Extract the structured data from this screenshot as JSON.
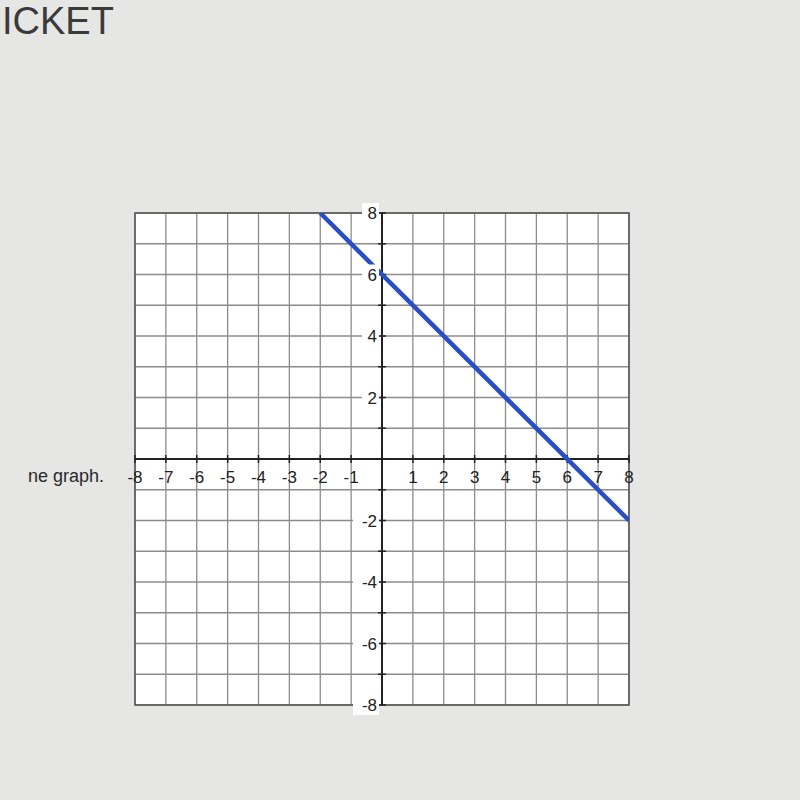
{
  "chart_data": {
    "type": "line",
    "title": "ICKET",
    "annotations": [
      "ne graph."
    ],
    "x": [
      -2,
      8
    ],
    "values": [
      8,
      -2
    ],
    "color": "#2a4fc4",
    "xlim": [
      -8,
      8
    ],
    "ylim": [
      -8,
      8
    ],
    "xticks": [
      -8,
      -7,
      -6,
      -5,
      -4,
      -3,
      -2,
      -1,
      {
        "value": 0,
        "label": null
      },
      1,
      2,
      3,
      4,
      5,
      6,
      7,
      8
    ],
    "yticks": [
      -8,
      {
        "value": -7,
        "label": null
      },
      -6,
      {
        "value": -5,
        "label": null
      },
      -4,
      {
        "value": -3,
        "label": null
      },
      -2,
      {
        "value": -1,
        "label": null
      },
      {
        "value": 0,
        "label": null
      },
      {
        "value": 1,
        "label": null
      },
      2,
      {
        "value": 3,
        "label": null
      },
      4,
      {
        "value": 5,
        "label": null
      },
      6,
      {
        "value": 7,
        "label": null
      },
      8
    ],
    "grid": true
  }
}
